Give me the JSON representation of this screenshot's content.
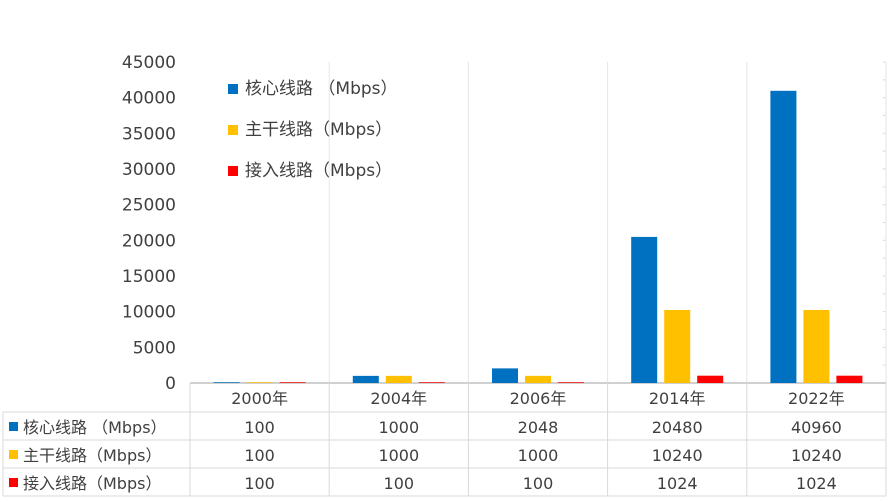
{
  "chart_data": {
    "type": "bar",
    "categories": [
      "2000年",
      "2004年",
      "2006年",
      "2014年",
      "2022年"
    ],
    "series": [
      {
        "name": "核心线路 （Mbps）",
        "table_name": "核心线路 （Mbps）",
        "color": "#0070C0",
        "values": [
          100,
          1000,
          2048,
          20480,
          40960
        ]
      },
      {
        "name": "主干线路（Mbps）",
        "table_name": "主干线路（Mbps）",
        "color": "#FFC000",
        "values": [
          100,
          1000,
          1000,
          10240,
          10240
        ]
      },
      {
        "name": "接入线路（Mbps）",
        "table_name": "接入线路（Mbps）",
        "color": "#FF0000",
        "values": [
          100,
          100,
          100,
          1024,
          1024
        ]
      }
    ],
    "yticks": [
      "0",
      "5000",
      "10000",
      "15000",
      "20000",
      "25000",
      "30000",
      "35000",
      "40000",
      "45000"
    ],
    "ylim": [
      0,
      45000
    ],
    "legend_position": "top-left",
    "data_table": true,
    "grid": "vertical category separators"
  }
}
